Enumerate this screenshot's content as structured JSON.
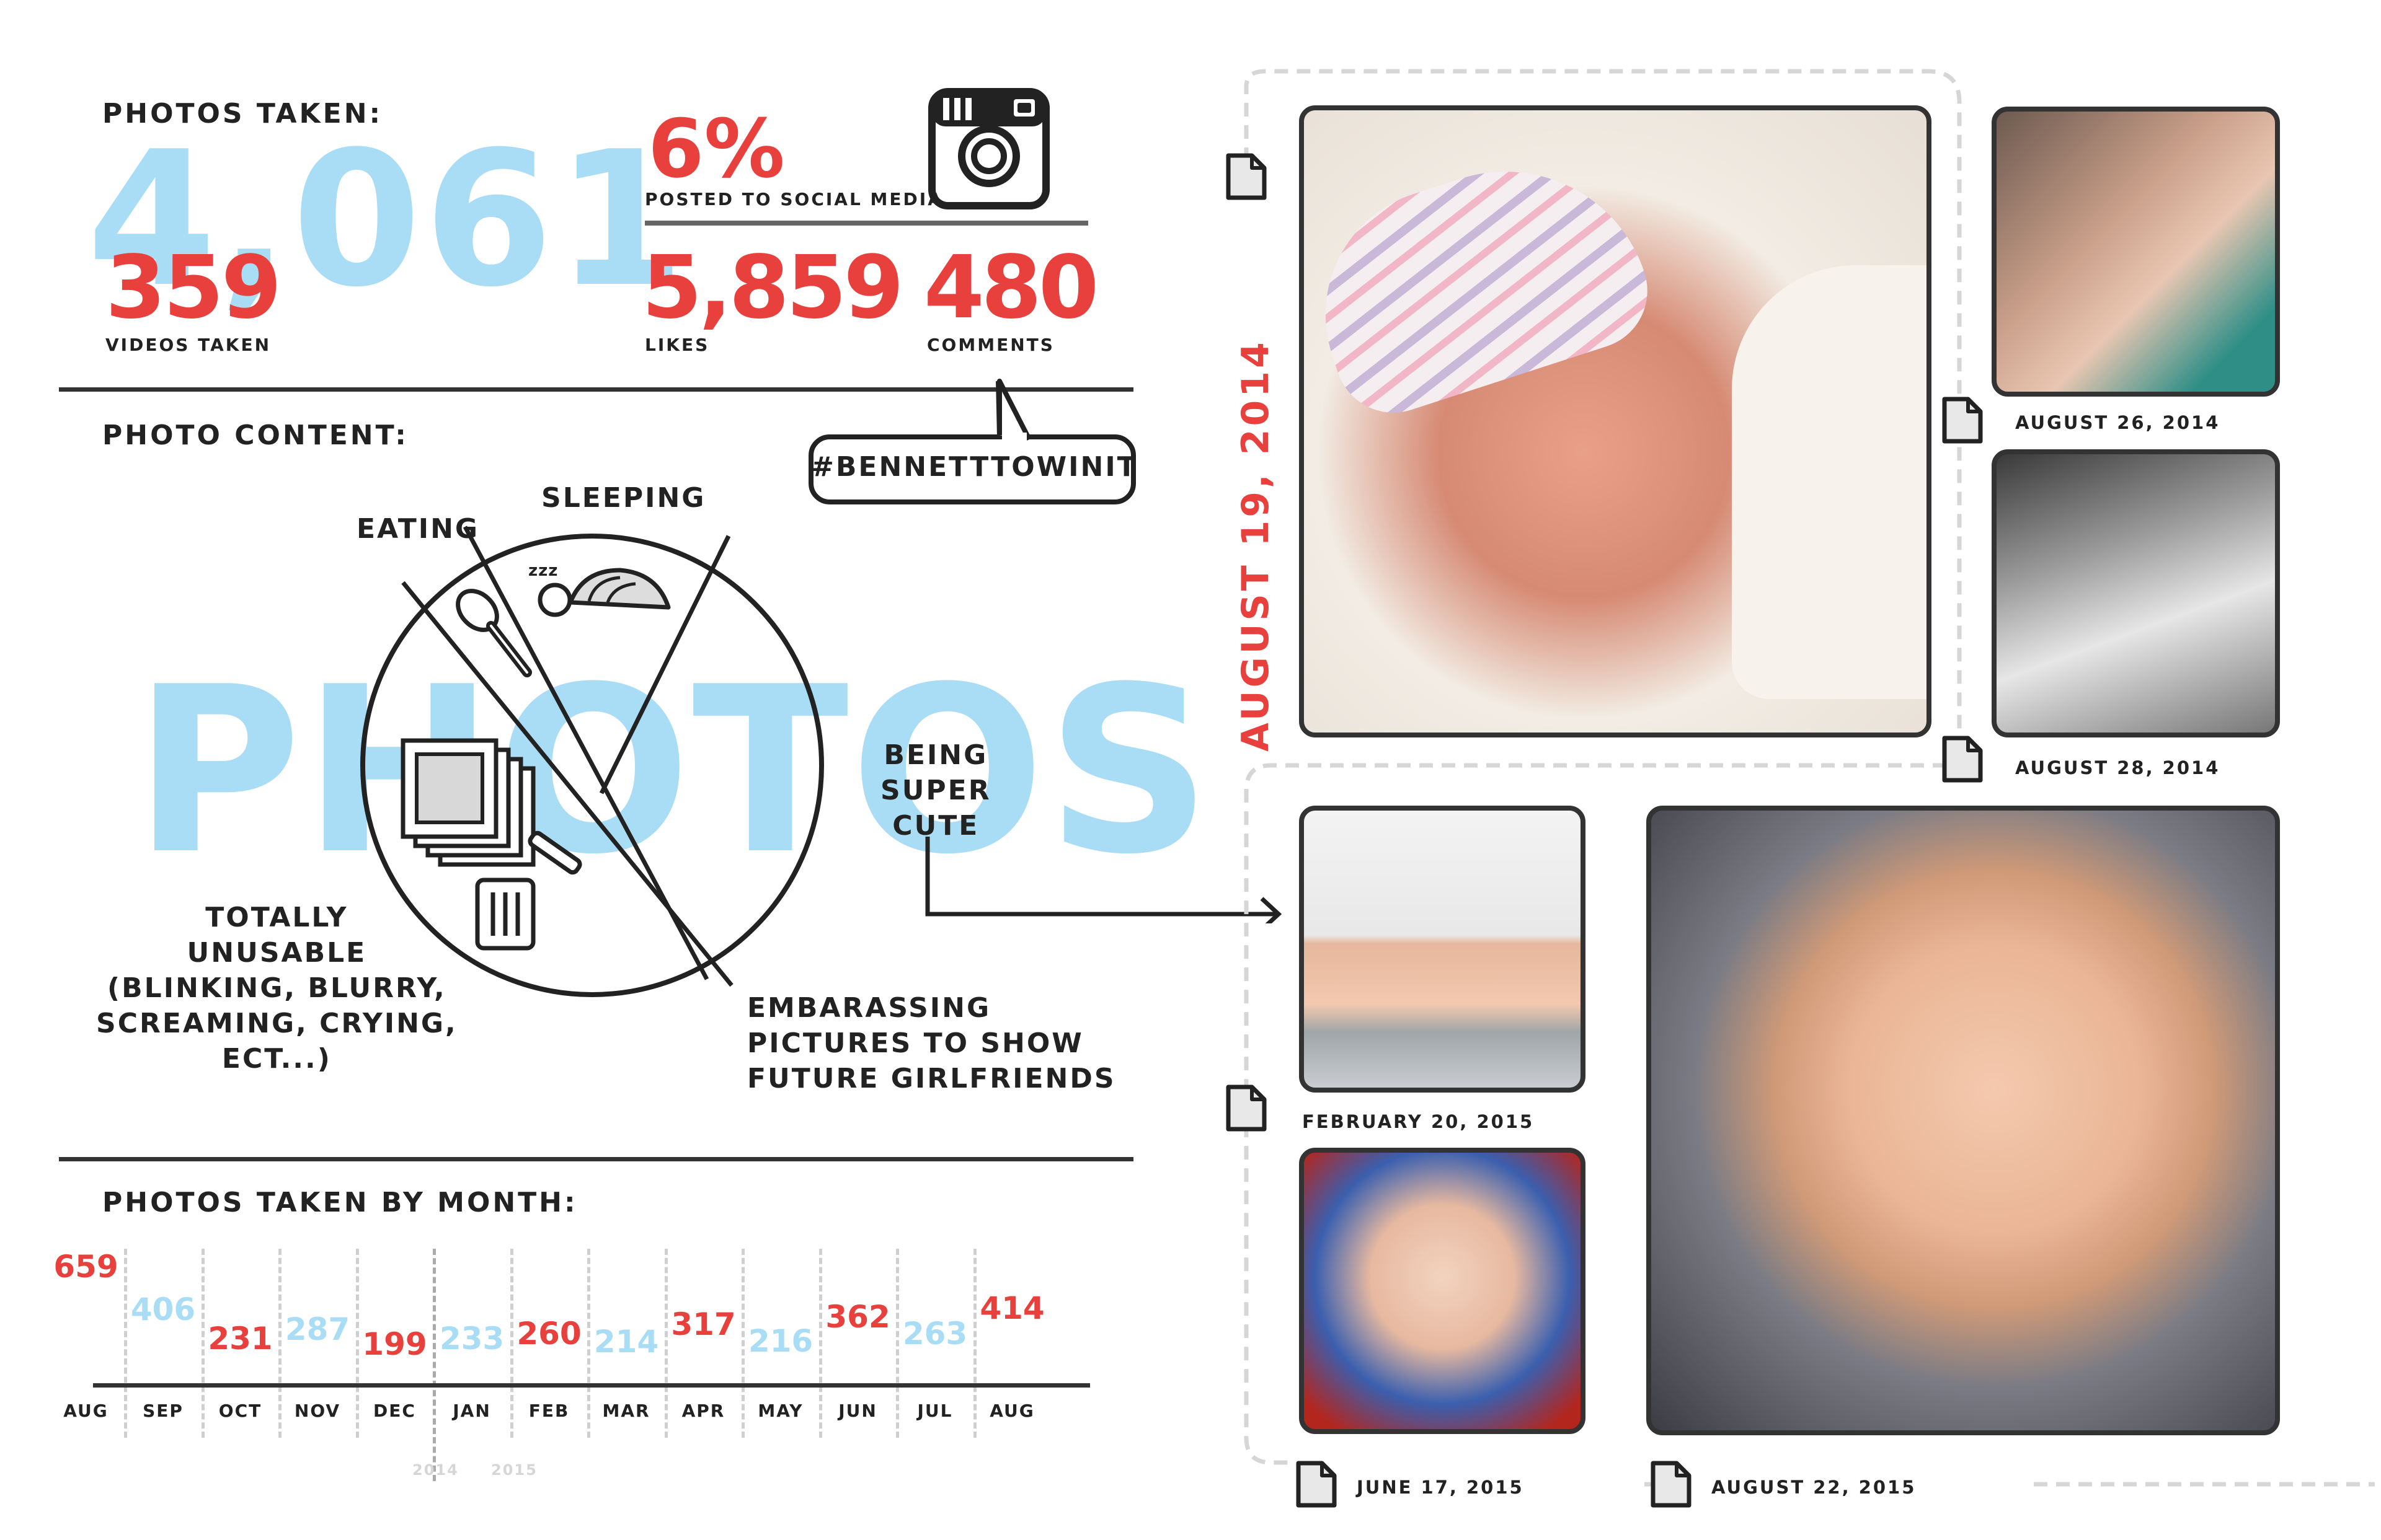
{
  "stats": {
    "photos_taken_label": "PHOTOS TAKEN:",
    "photos_taken_value": "4,061",
    "videos_value": "359",
    "videos_label": "VIDEOS TAKEN",
    "social_percent": "6%",
    "social_label": "POSTED TO SOCIAL MEDIA",
    "likes_value": "5,859",
    "likes_label": "LIKES",
    "comments_value": "480",
    "comments_label": "COMMENTS",
    "hashtag": "#BENNETTTOWINIT"
  },
  "photo_content": {
    "heading": "PHOTO CONTENT:",
    "background_word": "PHOTOS",
    "labels": {
      "eating": "EATING",
      "sleeping": "SLEEPING",
      "zzz": "zzz",
      "cute": [
        "BEING",
        "SUPER",
        "CUTE"
      ],
      "unusable": [
        "TOTALLY",
        "UNUSABLE",
        "(BLINKING, BLURRY,",
        "SCREAMING, CRYING,",
        "ECT...)"
      ],
      "embarassing": [
        "EMBARASSING",
        "PICTURES TO SHOW",
        "FUTURE GIRLFRIENDS"
      ]
    }
  },
  "by_month": {
    "heading": "PHOTOS TAKEN BY MONTH:",
    "months": [
      {
        "label": "AUG",
        "value": "659",
        "color": "red"
      },
      {
        "label": "SEP",
        "value": "406",
        "color": "blue"
      },
      {
        "label": "OCT",
        "value": "231",
        "color": "red"
      },
      {
        "label": "NOV",
        "value": "287",
        "color": "blue"
      },
      {
        "label": "DEC",
        "value": "199",
        "color": "red"
      },
      {
        "label": "JAN",
        "value": "233",
        "color": "blue"
      },
      {
        "label": "FEB",
        "value": "260",
        "color": "red"
      },
      {
        "label": "MAR",
        "value": "214",
        "color": "blue"
      },
      {
        "label": "APR",
        "value": "317",
        "color": "red"
      },
      {
        "label": "MAY",
        "value": "216",
        "color": "blue"
      },
      {
        "label": "JUN",
        "value": "362",
        "color": "red"
      },
      {
        "label": "JUL",
        "value": "263",
        "color": "blue"
      },
      {
        "label": "AUG",
        "value": "414",
        "color": "red"
      }
    ],
    "year_left": "2014",
    "year_right": "2015"
  },
  "timeline": {
    "main_date": "AUGUST 19, 2014",
    "dates": {
      "aug26": "AUGUST 26, 2014",
      "aug28": "AUGUST 28, 2014",
      "feb20": "FEBRUARY 20, 2015",
      "jun17": "JUNE 17, 2015",
      "aug22": "AUGUST 22, 2015"
    }
  },
  "colors": {
    "red": "#e8403c",
    "blue": "#a9ddf5",
    "ink": "#333333"
  }
}
